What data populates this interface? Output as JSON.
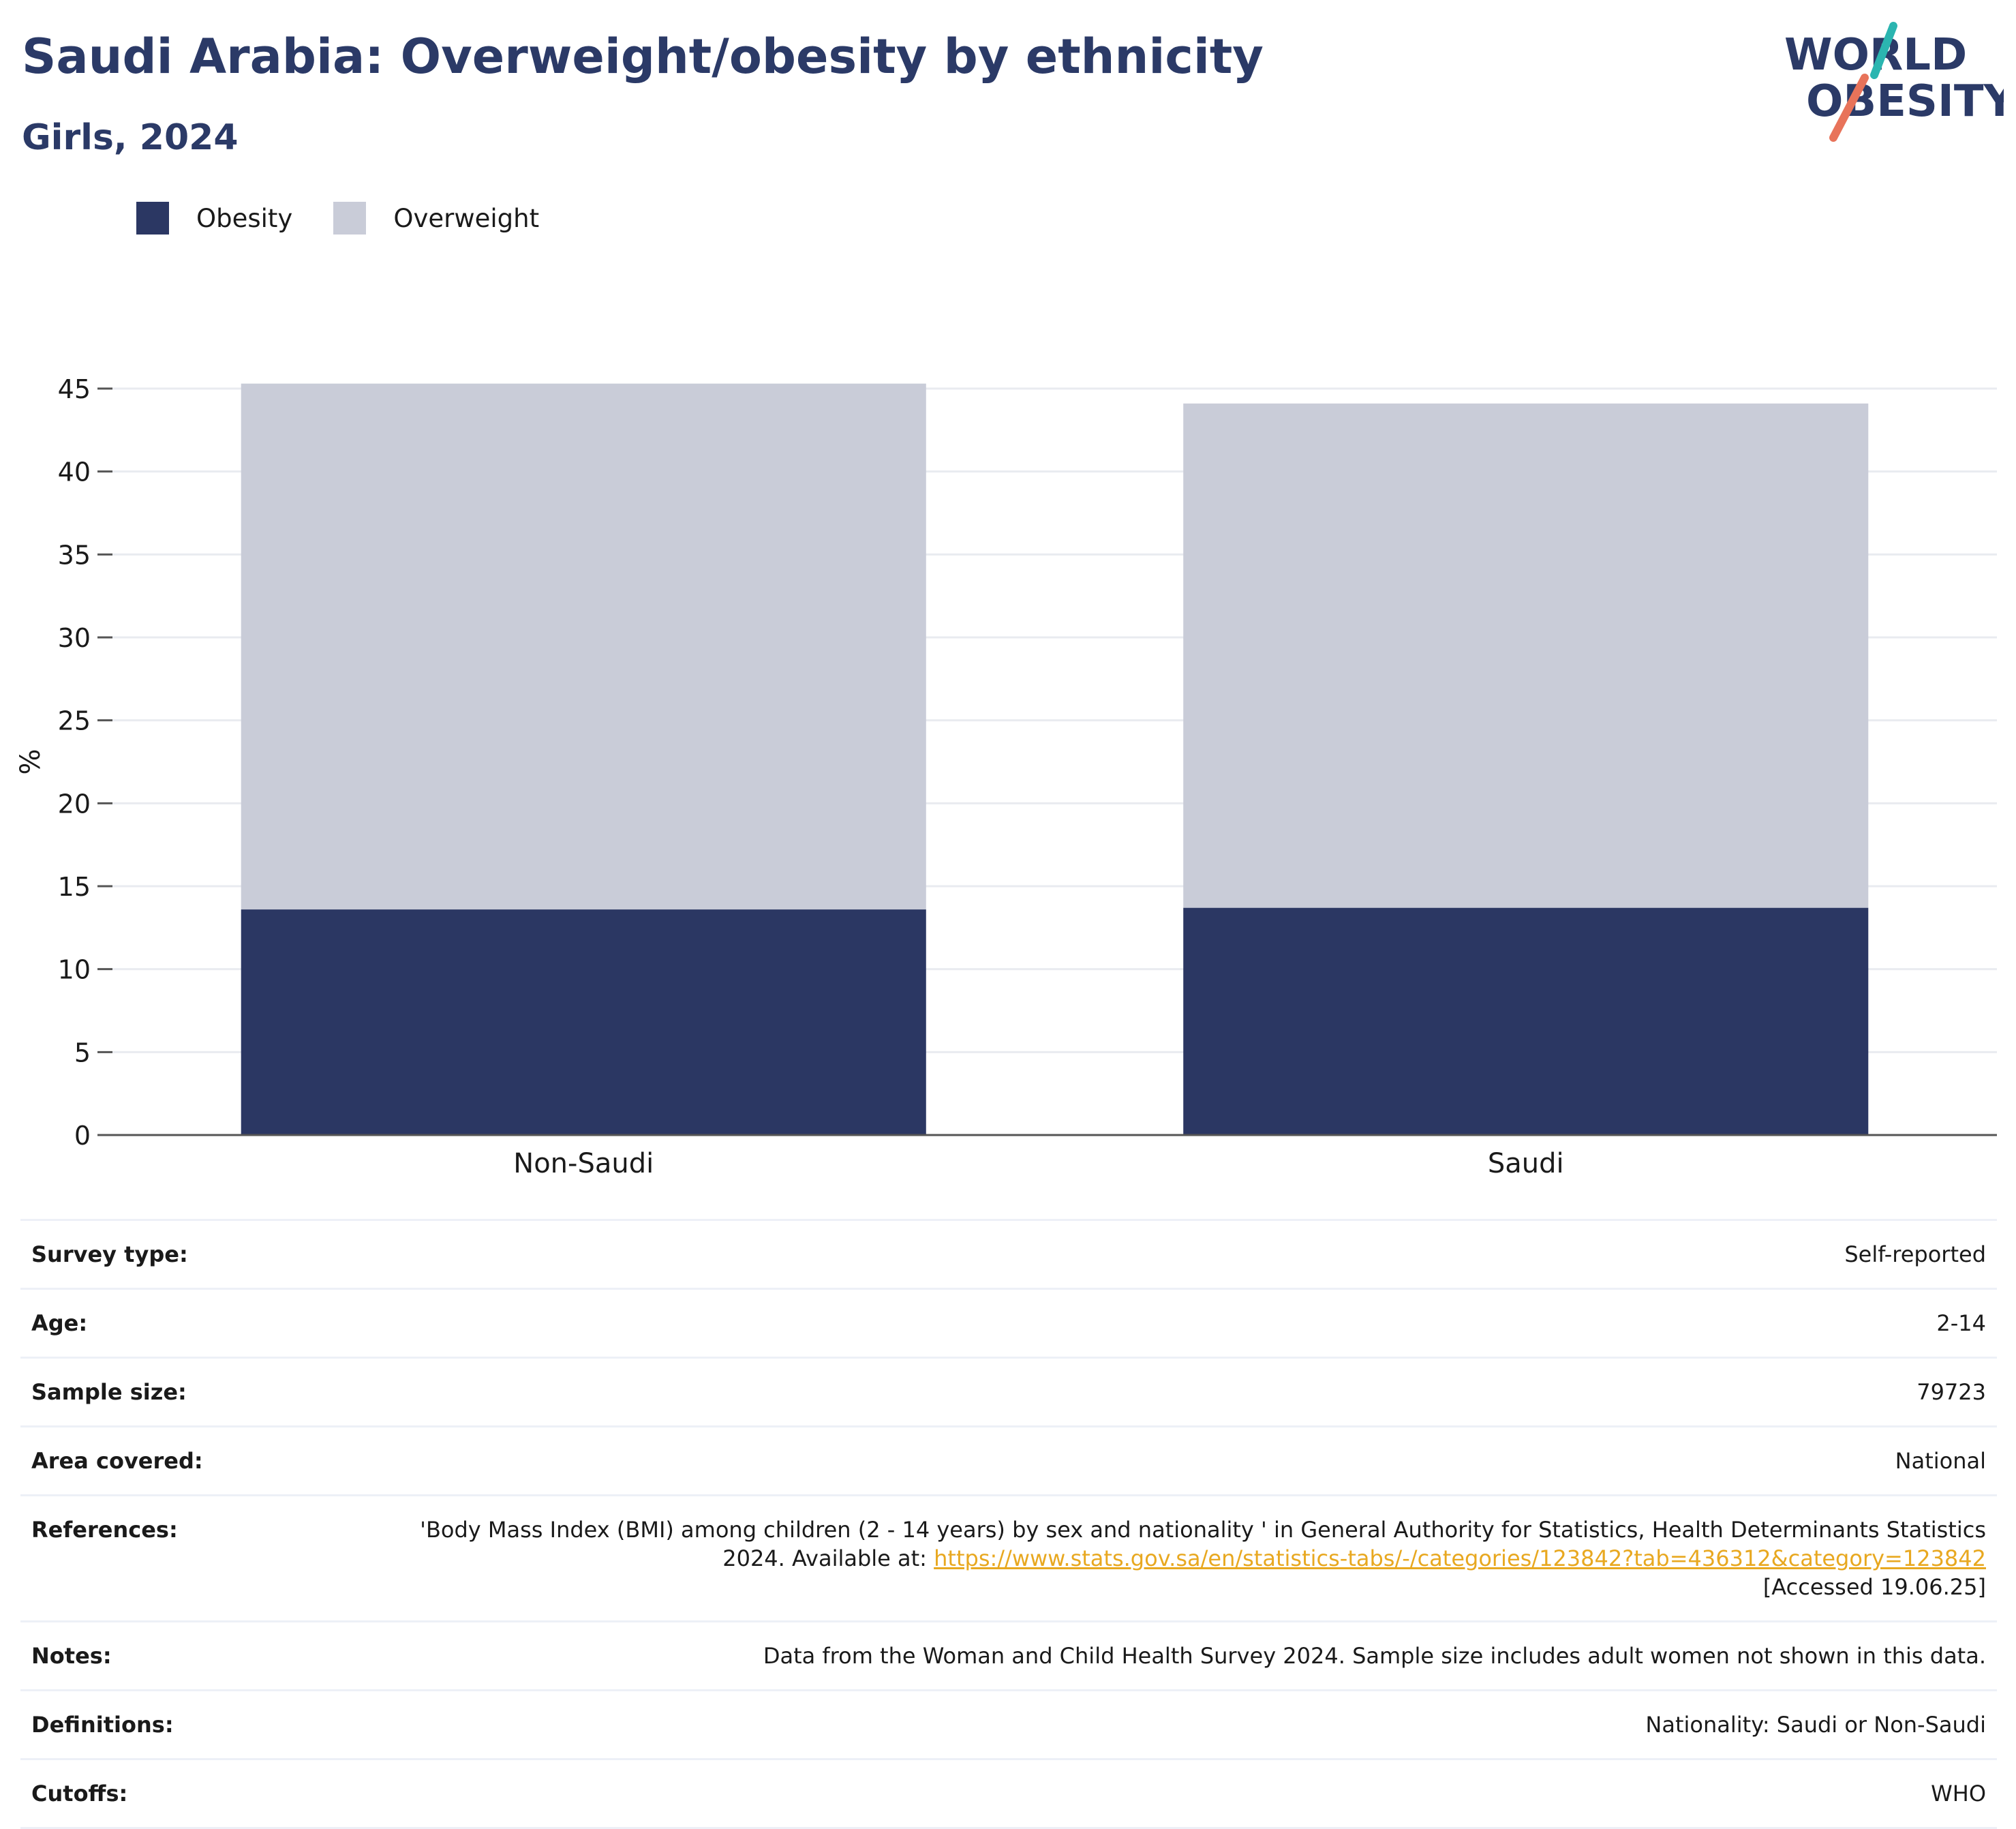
{
  "header": {
    "title": "Saudi Arabia: Overweight/obesity by ethnicity",
    "subtitle": "Girls, 2024",
    "logo_line1": "WORLD",
    "logo_line2": "OBESITY"
  },
  "colors": {
    "title": "#2b3a67",
    "obesity": "#2b3763",
    "overweight": "#c9ccd8",
    "grid": "#e9ebf0",
    "axis": "#555555",
    "link": "#e8a820",
    "logo_teal": "#2bb5b0",
    "logo_coral": "#e8735a"
  },
  "legend": [
    {
      "label": "Obesity",
      "color": "#2b3763"
    },
    {
      "label": "Overweight",
      "color": "#c9ccd8"
    }
  ],
  "chart_data": {
    "type": "bar",
    "stacked": true,
    "title": "Saudi Arabia: Overweight/obesity by ethnicity",
    "subtitle": "Girls, 2024",
    "xlabel": "",
    "ylabel": "%",
    "categories": [
      "Non-Saudi",
      "Saudi"
    ],
    "series": [
      {
        "name": "Obesity",
        "values": [
          13.6,
          13.7
        ]
      },
      {
        "name": "Overweight",
        "values": [
          31.7,
          30.4
        ]
      }
    ],
    "ylim": [
      0,
      45
    ],
    "yticks": [
      "0",
      "5",
      "10",
      "15",
      "20",
      "25",
      "30",
      "35",
      "40",
      "45"
    ],
    "grid": true,
    "legend_position": "top-left"
  },
  "info": [
    {
      "label": "Survey type:",
      "value": "Self-reported"
    },
    {
      "label": "Age:",
      "value": "2-14"
    },
    {
      "label": "Sample size:",
      "value": "79723"
    },
    {
      "label": "Area covered:",
      "value": "National"
    },
    {
      "label": "References:",
      "value_pre": "'Body Mass Index (BMI) among children (2 - 14 years) by sex and nationality ' in General Authority for Statistics, Health Determinants Statistics 2024. Available at: ",
      "link": "https://www.stats.gov.sa/en/statistics-tabs/-/categories/123842?tab=436312&category=123842",
      "value_post": "[Accessed 19.06.25]"
    },
    {
      "label": "Notes:",
      "value": "Data from the Woman and Child Health Survey 2024. Sample size includes adult women not shown in this data."
    },
    {
      "label": "Definitions:",
      "value": "Nationality: Saudi or Non-Saudi"
    },
    {
      "label": "Cutoffs:",
      "value": "WHO"
    }
  ]
}
